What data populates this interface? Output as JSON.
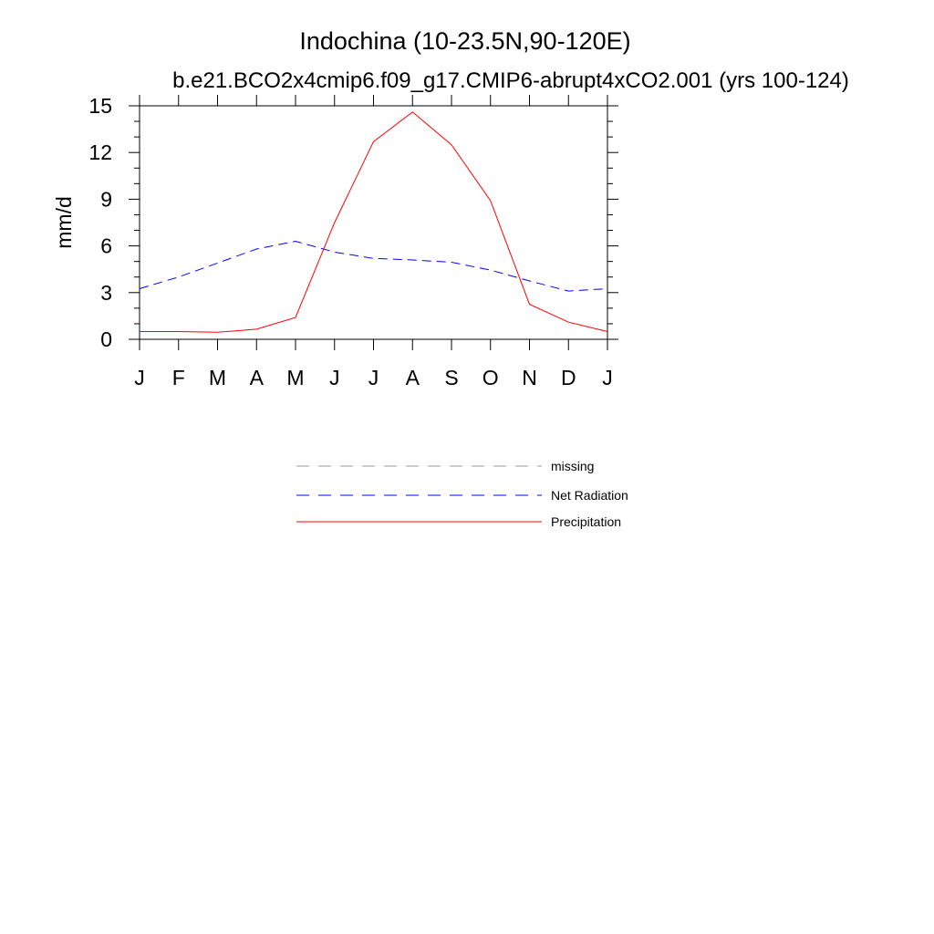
{
  "chart_data": {
    "type": "line",
    "title": "Indochina (10-23.5N,90-120E)",
    "subtitle": "b.e21.BCO2x4cmip6.f09_g17.CMIP6-abrupt4xCO2.001 (yrs 100-124)",
    "ylabel": "mm/d",
    "xlabel": "",
    "categories": [
      "J",
      "F",
      "M",
      "A",
      "M",
      "J",
      "J",
      "A",
      "S",
      "O",
      "N",
      "D",
      "J"
    ],
    "ylim": [
      0,
      15
    ],
    "yticks": [
      0,
      3,
      6,
      9,
      12,
      15
    ],
    "grid": false,
    "series": [
      {
        "name": "Net Radiation",
        "color": "#0000ff",
        "dash": "dashed",
        "values": [
          3.25,
          4.0,
          4.9,
          5.8,
          6.3,
          5.6,
          5.2,
          5.1,
          4.95,
          4.45,
          3.75,
          3.1,
          3.25
        ]
      },
      {
        "name": "Precipitation",
        "color": "#ff0000",
        "dash": "solid",
        "values": [
          0.5,
          0.5,
          0.45,
          0.65,
          1.4,
          7.5,
          12.7,
          14.6,
          12.5,
          8.9,
          2.25,
          1.1,
          0.5
        ]
      }
    ],
    "legend": {
      "position": "below",
      "entries": [
        {
          "label": "missing",
          "color": "#999999",
          "dash": "dashed"
        },
        {
          "label": "Net Radiation",
          "color": "#0000ff",
          "dash": "dashed"
        },
        {
          "label": "Precipitation",
          "color": "#ff0000",
          "dash": "solid"
        }
      ]
    }
  }
}
